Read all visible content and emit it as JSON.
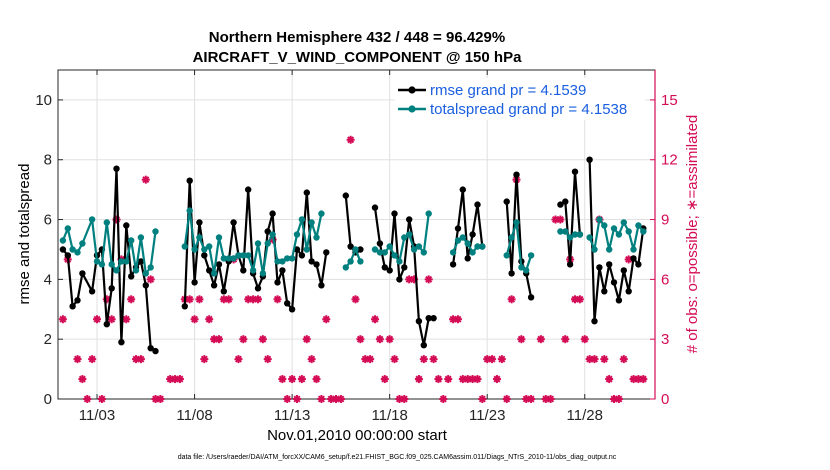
{
  "chart_data": {
    "type": "line",
    "title_line1": "Northern Hemisphere 432 / 448 = 96.429%",
    "title_line2": "AIRCRAFT_V_WIND_COMPONENT @ 150 hPa",
    "xlabel": "Nov.01,2010 00:00:00 start",
    "ylabel_left": "rmse and totalspread",
    "ylabel_right": "# of obs: o=possible; ∗=assimilated",
    "footer": "data file: /Users/raeder/DAI/ATM_forcXX/CAM6_setup/f.e21.FHIST_BGC.f09_025.CAM6assim.011/Diags_NTrS_2010-11/obs_diag_output.nc",
    "xlim": [
      1.0,
      31.6
    ],
    "ylim_left": [
      0,
      11
    ],
    "ylim_right": [
      0,
      16.5
    ],
    "x_ticks": [
      3,
      8,
      13,
      18,
      23,
      28
    ],
    "x_tick_labels": [
      "11/03",
      "11/08",
      "11/13",
      "11/18",
      "11/23",
      "11/28"
    ],
    "y_ticks_left": [
      0,
      2,
      4,
      6,
      8,
      10
    ],
    "y_tick_labels_left": [
      "0",
      "2",
      "4",
      "6",
      "8",
      "10"
    ],
    "y_ticks_right": [
      0,
      3,
      6,
      9,
      12,
      15
    ],
    "y_tick_labels_right": [
      "0",
      "3",
      "6",
      "9",
      "12",
      "15"
    ],
    "colors": {
      "rmse": "#000000",
      "spread": "#00807f",
      "obs": "#d40c55",
      "legend_text": "#1a5fe0",
      "grid": "#e0e0e0"
    },
    "series": [
      {
        "name": "rmse grand pr = 4.1539",
        "key": "rmse",
        "points": [
          [
            1.25,
            5.0
          ],
          [
            1.5,
            4.8
          ],
          [
            1.75,
            3.1
          ],
          [
            2.0,
            3.3
          ],
          [
            2.25,
            4.2
          ],
          [
            2.75,
            3.6
          ],
          [
            3.0,
            4.8
          ],
          [
            3.25,
            5.0
          ],
          [
            3.5,
            2.5
          ],
          [
            3.75,
            3.7
          ],
          [
            4.0,
            7.7
          ],
          [
            4.25,
            1.9
          ],
          [
            4.5,
            5.8
          ],
          [
            4.75,
            4.1
          ],
          [
            5.0,
            4.4
          ],
          [
            5.25,
            4.6
          ],
          [
            5.5,
            3.8
          ],
          [
            5.75,
            1.7
          ],
          [
            6.0,
            1.6
          ],
          [
            null,
            null
          ],
          [
            7.5,
            3.1
          ],
          [
            7.75,
            7.3
          ],
          [
            8.0,
            3.9
          ],
          [
            8.25,
            5.9
          ],
          [
            8.5,
            4.8
          ],
          [
            8.75,
            4.3
          ],
          [
            9.0,
            3.8
          ],
          [
            9.25,
            4.5
          ],
          [
            9.5,
            3.6
          ],
          [
            9.75,
            4.6
          ],
          [
            10.0,
            5.9
          ],
          [
            10.25,
            4.8
          ],
          [
            10.5,
            4.3
          ],
          [
            10.75,
            7.0
          ],
          [
            11.0,
            4.2
          ],
          [
            11.25,
            3.7
          ],
          [
            11.5,
            4.1
          ],
          [
            11.75,
            5.6
          ],
          [
            12.0,
            6.2
          ],
          [
            12.25,
            3.9
          ],
          [
            12.5,
            4.3
          ],
          [
            12.75,
            3.2
          ],
          [
            13.0,
            3.0
          ],
          [
            13.25,
            5.0
          ],
          [
            13.5,
            4.8
          ],
          [
            13.75,
            6.9
          ],
          [
            14.0,
            4.6
          ],
          [
            14.25,
            4.5
          ],
          [
            14.5,
            3.8
          ],
          [
            14.75,
            4.9
          ],
          [
            null,
            null
          ],
          [
            15.75,
            6.8
          ],
          [
            16.0,
            5.1
          ],
          [
            16.25,
            4.9
          ],
          [
            16.5,
            5.0
          ],
          [
            null,
            null
          ],
          [
            17.25,
            6.4
          ],
          [
            17.5,
            5.2
          ],
          [
            17.75,
            4.4
          ],
          [
            18.0,
            4.3
          ],
          [
            18.25,
            6.2
          ],
          [
            18.5,
            4.0
          ],
          [
            18.75,
            4.4
          ],
          [
            19.0,
            6.0
          ],
          [
            19.25,
            5.1
          ],
          [
            19.5,
            2.6
          ],
          [
            19.75,
            1.8
          ],
          [
            20.0,
            2.7
          ],
          [
            20.25,
            2.7
          ],
          [
            null,
            null
          ],
          [
            21.25,
            4.5
          ],
          [
            21.5,
            5.7
          ],
          [
            21.75,
            7.0
          ],
          [
            22.0,
            4.7
          ],
          [
            22.25,
            5.5
          ],
          [
            22.5,
            6.5
          ],
          [
            22.75,
            5.1
          ],
          [
            null,
            null
          ],
          [
            24.0,
            6.6
          ],
          [
            24.25,
            4.2
          ],
          [
            24.5,
            7.5
          ],
          [
            24.75,
            4.6
          ],
          [
            25.0,
            4.2
          ],
          [
            25.25,
            3.4
          ],
          [
            null,
            null
          ],
          [
            26.75,
            6.5
          ],
          [
            27.0,
            6.6
          ],
          [
            27.25,
            4.5
          ],
          [
            27.5,
            7.6
          ],
          [
            27.75,
            5.5
          ],
          [
            null,
            null
          ],
          [
            28.25,
            8.0
          ],
          [
            28.5,
            2.6
          ],
          [
            28.75,
            4.4
          ],
          [
            29.0,
            3.6
          ],
          [
            29.25,
            4.5
          ],
          [
            29.5,
            3.9
          ],
          [
            29.75,
            3.3
          ],
          [
            30.0,
            4.3
          ],
          [
            30.25,
            3.6
          ],
          [
            30.5,
            4.7
          ],
          [
            30.75,
            4.5
          ],
          [
            31.0,
            5.7
          ]
        ]
      },
      {
        "name": "totalspread grand pr = 4.1538",
        "key": "spread",
        "points": [
          [
            1.25,
            5.3
          ],
          [
            1.5,
            5.7
          ],
          [
            1.75,
            5.0
          ],
          [
            2.0,
            4.9
          ],
          [
            2.25,
            5.2
          ],
          [
            2.75,
            6.0
          ],
          [
            3.0,
            4.6
          ],
          [
            3.25,
            4.5
          ],
          [
            3.5,
            5.9
          ],
          [
            3.75,
            4.5
          ],
          [
            4.0,
            4.3
          ],
          [
            4.25,
            4.6
          ],
          [
            4.5,
            4.6
          ],
          [
            4.75,
            5.3
          ],
          [
            5.0,
            4.3
          ],
          [
            5.25,
            5.4
          ],
          [
            5.5,
            4.2
          ],
          [
            5.75,
            4.4
          ],
          [
            6.0,
            5.6
          ],
          [
            null,
            null
          ],
          [
            7.5,
            5.1
          ],
          [
            7.75,
            6.3
          ],
          [
            8.0,
            5.0
          ],
          [
            8.25,
            5.4
          ],
          [
            8.5,
            5.0
          ],
          [
            8.75,
            5.1
          ],
          [
            9.0,
            4.2
          ],
          [
            9.25,
            5.4
          ],
          [
            9.5,
            4.7
          ],
          [
            9.75,
            4.7
          ],
          [
            10.0,
            4.7
          ],
          [
            10.25,
            4.8
          ],
          [
            10.5,
            4.8
          ],
          [
            10.75,
            4.8
          ],
          [
            11.0,
            4.3
          ],
          [
            11.25,
            5.2
          ],
          [
            11.5,
            4.2
          ],
          [
            11.75,
            5.2
          ],
          [
            12.0,
            5.5
          ],
          [
            12.25,
            4.6
          ],
          [
            12.5,
            4.6
          ],
          [
            12.75,
            4.7
          ],
          [
            13.0,
            4.7
          ],
          [
            13.25,
            5.5
          ],
          [
            13.5,
            6.0
          ],
          [
            13.75,
            5.0
          ],
          [
            14.0,
            5.9
          ],
          [
            14.25,
            5.4
          ],
          [
            14.5,
            6.2
          ],
          [
            null,
            null
          ],
          [
            15.75,
            4.4
          ],
          [
            16.0,
            4.6
          ],
          [
            16.25,
            5.0
          ],
          [
            16.5,
            4.6
          ],
          [
            null,
            null
          ],
          [
            17.25,
            5.0
          ],
          [
            17.5,
            4.9
          ],
          [
            17.75,
            4.9
          ],
          [
            18.0,
            5.1
          ],
          [
            18.25,
            4.8
          ],
          [
            18.5,
            4.6
          ],
          [
            18.75,
            5.4
          ],
          [
            19.0,
            5.5
          ],
          [
            19.25,
            5.0
          ],
          [
            19.5,
            5.1
          ],
          [
            19.75,
            4.9
          ],
          [
            20.0,
            6.2
          ],
          [
            null,
            null
          ],
          [
            21.25,
            4.9
          ],
          [
            21.5,
            5.3
          ],
          [
            21.75,
            5.4
          ],
          [
            22.0,
            5.2
          ],
          [
            22.25,
            4.9
          ],
          [
            22.5,
            5.1
          ],
          [
            22.75,
            5.1
          ],
          [
            null,
            null
          ],
          [
            24.0,
            4.8
          ],
          [
            24.25,
            5.4
          ],
          [
            24.5,
            5.9
          ],
          [
            24.75,
            4.4
          ],
          [
            25.0,
            4.3
          ],
          [
            25.25,
            4.8
          ],
          [
            null,
            null
          ],
          [
            26.75,
            5.6
          ],
          [
            27.0,
            5.6
          ],
          [
            27.25,
            5.4
          ],
          [
            27.5,
            5.5
          ],
          [
            27.75,
            5.5
          ],
          [
            null,
            null
          ],
          [
            28.25,
            5.4
          ],
          [
            28.5,
            5.0
          ],
          [
            28.75,
            6.0
          ],
          [
            29.0,
            5.8
          ],
          [
            29.25,
            5.0
          ],
          [
            29.5,
            5.7
          ],
          [
            29.75,
            5.5
          ],
          [
            30.0,
            5.9
          ],
          [
            30.25,
            5.6
          ],
          [
            30.5,
            5.0
          ],
          [
            30.75,
            5.8
          ],
          [
            31.0,
            5.6
          ]
        ]
      }
    ],
    "obs_assimilated": [
      [
        1.25,
        4
      ],
      [
        1.5,
        7
      ],
      [
        2.0,
        2
      ],
      [
        2.25,
        1
      ],
      [
        2.5,
        0
      ],
      [
        2.75,
        2
      ],
      [
        3.0,
        4
      ],
      [
        3.25,
        0
      ],
      [
        3.5,
        5
      ],
      [
        3.75,
        4
      ],
      [
        4.0,
        9
      ],
      [
        4.25,
        7
      ],
      [
        4.5,
        4
      ],
      [
        4.75,
        5
      ],
      [
        5.0,
        2
      ],
      [
        5.25,
        2
      ],
      [
        5.5,
        11
      ],
      [
        5.75,
        6
      ],
      [
        6.0,
        0
      ],
      [
        6.25,
        0
      ],
      [
        6.75,
        1
      ],
      [
        7.0,
        1
      ],
      [
        7.25,
        1
      ],
      [
        7.5,
        5
      ],
      [
        7.75,
        5
      ],
      [
        8.0,
        4
      ],
      [
        8.25,
        5
      ],
      [
        8.5,
        2
      ],
      [
        8.75,
        4
      ],
      [
        9.0,
        3
      ],
      [
        9.25,
        3
      ],
      [
        9.5,
        5
      ],
      [
        9.75,
        5
      ],
      [
        10.0,
        7
      ],
      [
        10.25,
        2
      ],
      [
        10.5,
        3
      ],
      [
        10.75,
        5
      ],
      [
        11.0,
        5
      ],
      [
        11.25,
        5
      ],
      [
        11.5,
        3
      ],
      [
        11.75,
        2
      ],
      [
        12.0,
        8
      ],
      [
        12.25,
        5
      ],
      [
        12.5,
        1
      ],
      [
        12.75,
        0
      ],
      [
        13.0,
        1
      ],
      [
        13.25,
        0
      ],
      [
        13.5,
        1
      ],
      [
        13.75,
        3
      ],
      [
        14.0,
        2
      ],
      [
        14.25,
        1
      ],
      [
        14.5,
        0
      ],
      [
        14.75,
        4
      ],
      [
        15.0,
        0
      ],
      [
        15.25,
        0
      ],
      [
        15.5,
        0
      ],
      [
        16.0,
        13
      ],
      [
        16.25,
        5
      ],
      [
        16.5,
        3
      ],
      [
        16.75,
        2
      ],
      [
        17.0,
        2
      ],
      [
        17.25,
        4
      ],
      [
        17.5,
        3
      ],
      [
        17.75,
        1
      ],
      [
        18.0,
        3
      ],
      [
        18.25,
        2
      ],
      [
        18.5,
        0
      ],
      [
        18.75,
        0
      ],
      [
        19.0,
        6
      ],
      [
        19.25,
        6
      ],
      [
        19.5,
        1
      ],
      [
        19.75,
        2
      ],
      [
        20.0,
        6
      ],
      [
        20.25,
        2
      ],
      [
        20.5,
        1
      ],
      [
        20.75,
        0
      ],
      [
        21.0,
        1
      ],
      [
        21.25,
        4
      ],
      [
        21.5,
        4
      ],
      [
        21.75,
        1
      ],
      [
        22.0,
        1
      ],
      [
        22.25,
        1
      ],
      [
        22.5,
        1
      ],
      [
        22.75,
        0
      ],
      [
        23.0,
        2
      ],
      [
        23.25,
        2
      ],
      [
        23.5,
        1
      ],
      [
        23.75,
        2
      ],
      [
        24.0,
        0
      ],
      [
        24.25,
        5
      ],
      [
        24.5,
        11
      ],
      [
        24.75,
        3
      ],
      [
        25.0,
        0
      ],
      [
        25.25,
        0
      ],
      [
        25.75,
        3
      ],
      [
        26.0,
        0
      ],
      [
        26.25,
        0
      ],
      [
        26.5,
        9
      ],
      [
        26.75,
        9
      ],
      [
        27.0,
        3
      ],
      [
        27.25,
        7
      ],
      [
        27.5,
        5
      ],
      [
        27.75,
        5
      ],
      [
        28.0,
        3
      ],
      [
        28.25,
        2
      ],
      [
        28.5,
        2
      ],
      [
        28.75,
        9
      ],
      [
        29.0,
        2
      ],
      [
        29.25,
        1
      ],
      [
        29.5,
        0
      ],
      [
        29.75,
        0
      ],
      [
        30.0,
        2
      ],
      [
        30.25,
        7
      ],
      [
        30.5,
        1
      ],
      [
        30.75,
        1
      ],
      [
        31.0,
        1
      ]
    ]
  }
}
